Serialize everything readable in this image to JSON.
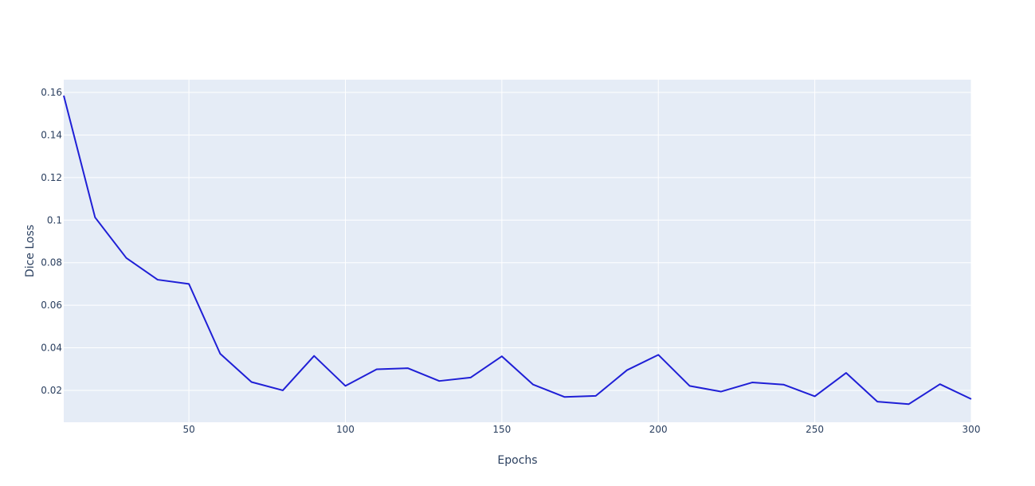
{
  "chart_data": {
    "type": "line",
    "xlabel": "Epochs",
    "ylabel": "Dice Loss",
    "xlim": [
      10,
      300
    ],
    "ylim": [
      0.005,
      0.166
    ],
    "x_ticks": [
      50,
      100,
      150,
      200,
      250,
      300
    ],
    "y_ticks": [
      0.02,
      0.04,
      0.06,
      0.08,
      0.1,
      0.12,
      0.14,
      0.16
    ],
    "grid": true,
    "colors": {
      "line": "#1f1fd6",
      "plot_bg": "#e5ecf6",
      "grid": "#ffffff",
      "text": "#2a3f5f"
    },
    "series": [
      {
        "x": [
          10,
          20,
          30,
          40,
          50,
          60,
          70,
          80,
          90,
          100,
          110,
          120,
          130,
          140,
          150,
          160,
          170,
          180,
          190,
          200,
          210,
          220,
          230,
          240,
          250,
          260,
          270,
          280,
          290,
          300
        ],
        "values": [
          0.1585,
          0.1013,
          0.0822,
          0.072,
          0.07,
          0.0372,
          0.0239,
          0.02,
          0.0362,
          0.0221,
          0.0299,
          0.0304,
          0.0244,
          0.026,
          0.036,
          0.0227,
          0.0169,
          0.0174,
          0.0295,
          0.0367,
          0.0221,
          0.0194,
          0.0237,
          0.0227,
          0.0172,
          0.0282,
          0.0147,
          0.0135,
          0.0229,
          0.0159
        ]
      }
    ]
  }
}
